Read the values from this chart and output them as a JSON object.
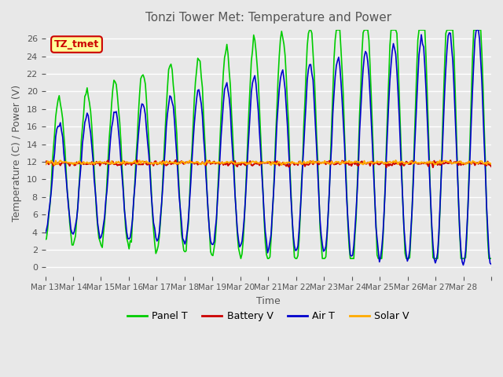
{
  "title": "Tonzi Tower Met: Temperature and Power",
  "xlabel": "Time",
  "ylabel": "Temperature (C) / Power (V)",
  "annotation": "TZ_tmet",
  "ylim": [
    -1,
    27
  ],
  "yticks": [
    0,
    2,
    4,
    6,
    8,
    10,
    12,
    14,
    16,
    18,
    20,
    22,
    24,
    26
  ],
  "date_labels": [
    "Mar 13",
    "Mar 14",
    "Mar 15",
    "Mar 16",
    "Mar 17",
    "Mar 18",
    "Mar 19",
    "Mar 20",
    "Mar 21",
    "Mar 22",
    "Mar 23",
    "Mar 24",
    "Mar 25",
    "Mar 26",
    "Mar 27",
    "Mar 28"
  ],
  "legend_labels": [
    "Panel T",
    "Battery V",
    "Air T",
    "Solar V"
  ],
  "legend_colors": [
    "#00cc00",
    "#cc0000",
    "#0000cc",
    "#ffaa00"
  ],
  "background_color": "#e8e8e8",
  "plot_bg_color": "#e8e8e8",
  "grid_color": "#ffffff",
  "panel_T_color": "#00cc00",
  "battery_V_color": "#cc0000",
  "air_T_color": "#0000cc",
  "solar_V_color": "#ffaa00",
  "n_days": 16,
  "battery_base": 11.8,
  "solar_base": 11.9
}
